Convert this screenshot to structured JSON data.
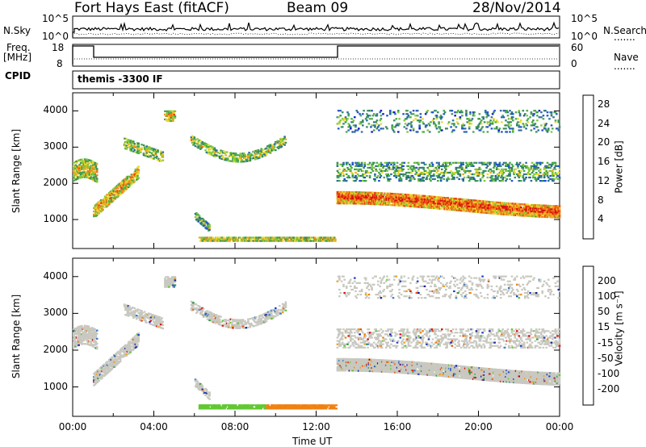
{
  "header": {
    "station": "Fort Hays East (fitACF)",
    "beam": "Beam 09",
    "date": "28/Nov/2014"
  },
  "labels": {
    "nsky": "N.Sky",
    "nsearch": "N.Search",
    "freq": "Freq.",
    "freq_unit": "[MHz]",
    "nave": "Nave",
    "cpid": "CPID",
    "cpid_value": "themis -3300 IF",
    "ylabel": "Slant Range [km]",
    "xlabel": "Time UT",
    "legend_dots": "......."
  },
  "noise_panel": {
    "left_ticks": [
      "10^5",
      "10^0"
    ],
    "right_ticks": [
      "10^5",
      "10^0"
    ]
  },
  "freq_panel": {
    "left_ticks": [
      "18",
      "8"
    ],
    "right_ticks": [
      "60",
      "0"
    ]
  },
  "colors": {
    "power": [
      "#0a14c8",
      "#2050d0",
      "#2e6e9a",
      "#3a8a5a",
      "#46a84a",
      "#7ec838",
      "#e8d830",
      "#f0a820",
      "#f07818",
      "#e84010",
      "#d81010"
    ],
    "velocity": [
      "#1020a0",
      "#2040c0",
      "#3a7ec8",
      "#2c9a40",
      "#60c830",
      "#c8c8c0",
      "#e8a020",
      "#f08010",
      "#e85010",
      "#d81010"
    ]
  },
  "chart_data": [
    {
      "type": "heatmap",
      "title": "",
      "ylabel": "Slant Range [km]",
      "colorbar_label": "Power [dB]",
      "colorbar_ticks": [
        "4",
        "8",
        "12",
        "16",
        "20",
        "24",
        "28"
      ],
      "colorbar_range": [
        0,
        30
      ],
      "xlim": [
        "00:00",
        "24:00"
      ],
      "ylim": [
        200,
        4500
      ],
      "x_ticks": [
        "00:00",
        "04:00",
        "08:00",
        "12:00",
        "16:00",
        "20:00",
        "00:00"
      ],
      "y_ticks": [
        "1000",
        "2000",
        "3000",
        "4000"
      ]
    },
    {
      "type": "heatmap",
      "title": "",
      "ylabel": "Slant Range [km]",
      "xlabel": "Time UT",
      "colorbar_label": "Velocity [m s⁻¹]",
      "colorbar_ticks": [
        "200",
        "100",
        "50",
        "15",
        "-15",
        "-50",
        "-100",
        "-200"
      ],
      "xlim": [
        "00:00",
        "24:00"
      ],
      "ylim": [
        200,
        4500
      ],
      "x_ticks": [
        "00:00",
        "04:00",
        "08:00",
        "12:00",
        "16:00",
        "20:00",
        "00:00"
      ],
      "y_ticks": [
        "1000",
        "2000",
        "3000",
        "4000"
      ]
    }
  ]
}
